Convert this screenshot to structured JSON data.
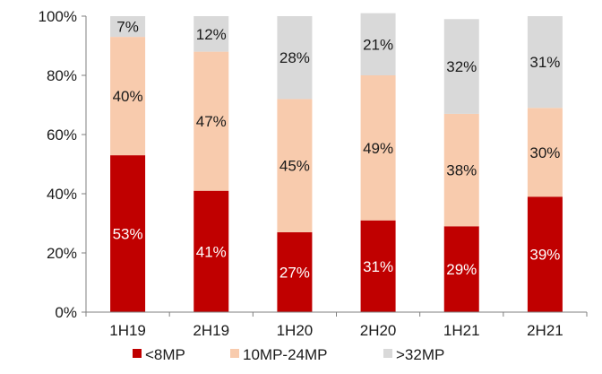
{
  "chart_data": {
    "type": "bar",
    "stacked": true,
    "title": "",
    "xlabel": "",
    "ylabel": "",
    "categories": [
      "1H19",
      "2H19",
      "1H20",
      "2H20",
      "1H21",
      "2H21"
    ],
    "series": [
      {
        "name": "<8MP",
        "values": [
          53,
          41,
          27,
          31,
          29,
          39
        ],
        "labels": [
          "53%",
          "41%",
          "27%",
          "31%",
          "29%",
          "39%"
        ],
        "color": "#c00000",
        "label_color": "#ffffff"
      },
      {
        "name": "10MP-24MP",
        "values": [
          40,
          47,
          45,
          49,
          38,
          30
        ],
        "labels": [
          "40%",
          "47%",
          "45%",
          "49%",
          "38%",
          "30%"
        ],
        "color": "#f8cbad",
        "label_color": "#1a1a1a"
      },
      {
        "name": ">32MP",
        "values": [
          7,
          12,
          28,
          21,
          32,
          31
        ],
        "labels": [
          "7%",
          "12%",
          "28%",
          "21%",
          "32%",
          "31%"
        ],
        "color": "#d9d9d9",
        "label_color": "#1a1a1a"
      }
    ],
    "ylim": [
      0,
      100
    ],
    "yticks": [
      0,
      20,
      40,
      60,
      80,
      100
    ],
    "ytick_labels": [
      "0%",
      "20%",
      "40%",
      "60%",
      "80%",
      "100%"
    ],
    "grid": false,
    "legend": "bottom"
  }
}
